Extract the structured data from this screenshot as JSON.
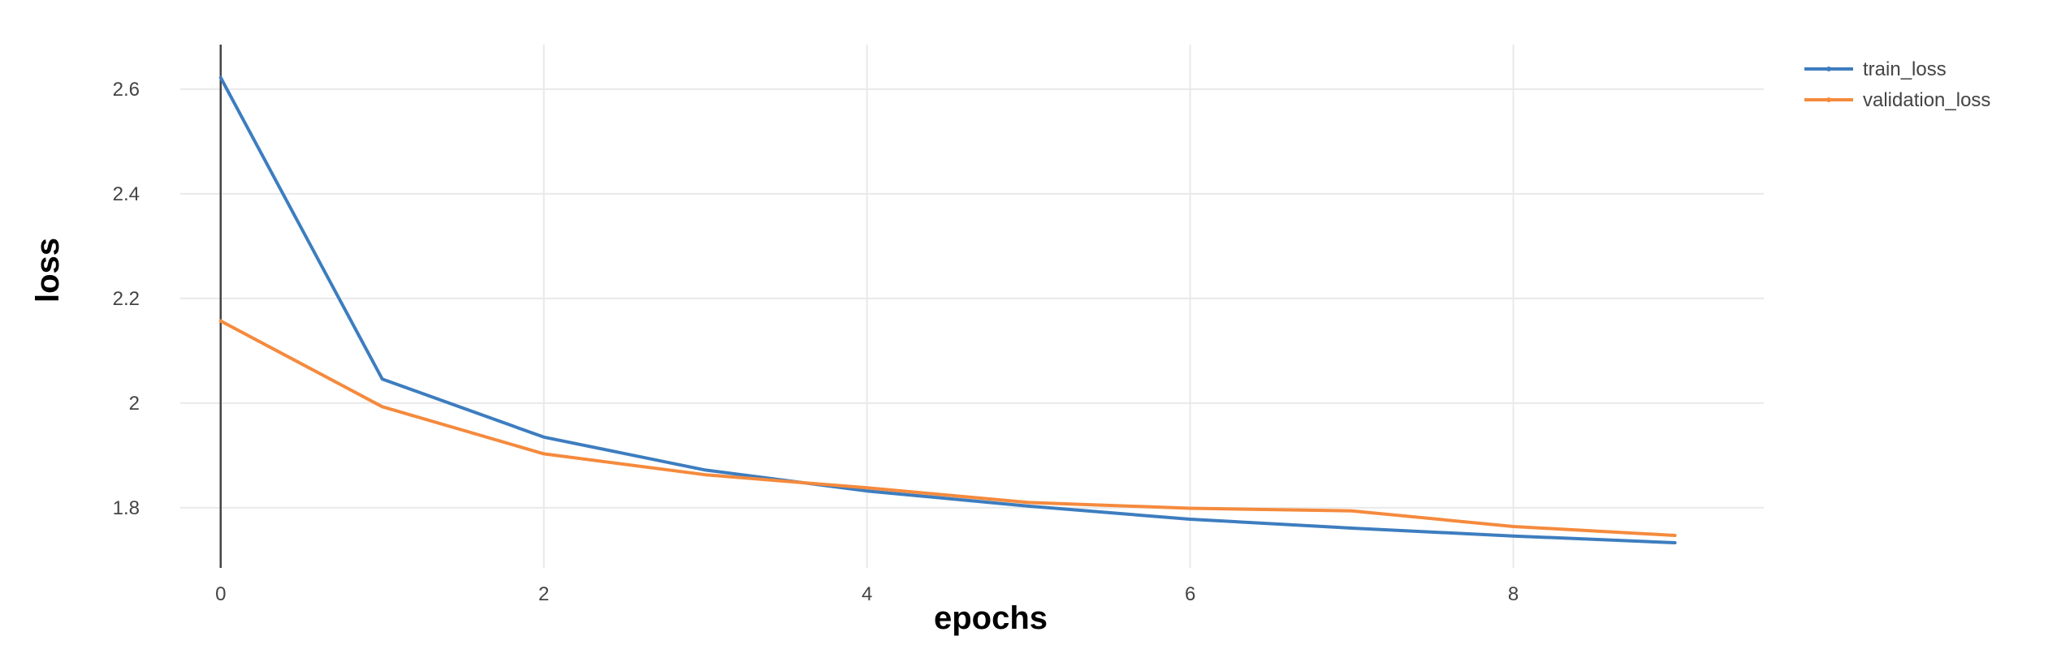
{
  "chart_data": {
    "type": "line",
    "title": "",
    "xlabel": "epochs",
    "ylabel": "loss",
    "xlim": [
      -0.25,
      9.55
    ],
    "ylim": [
      1.685,
      2.685
    ],
    "x_ticks": [
      0,
      2,
      4,
      6,
      8
    ],
    "y_ticks": [
      1.8,
      2,
      2.2,
      2.4,
      2.6
    ],
    "x_tick_labels": [
      "0",
      "2",
      "4",
      "6",
      "8"
    ],
    "y_tick_labels": [
      "1.8",
      "2",
      "2.2",
      "2.4",
      "2.6"
    ],
    "grid": true,
    "legend_position": "top-right",
    "x": [
      0,
      1,
      2,
      3,
      4,
      5,
      6,
      7,
      8,
      9
    ],
    "series": [
      {
        "name": "train_loss",
        "color": "#3d7dbf",
        "values": [
          2.622,
          2.046,
          1.935,
          1.872,
          1.832,
          1.803,
          1.778,
          1.761,
          1.746,
          1.733
        ]
      },
      {
        "name": "validation_loss",
        "color": "#f58a3d",
        "values": [
          2.157,
          1.993,
          1.903,
          1.863,
          1.838,
          1.81,
          1.799,
          1.794,
          1.764,
          1.747
        ]
      }
    ]
  }
}
